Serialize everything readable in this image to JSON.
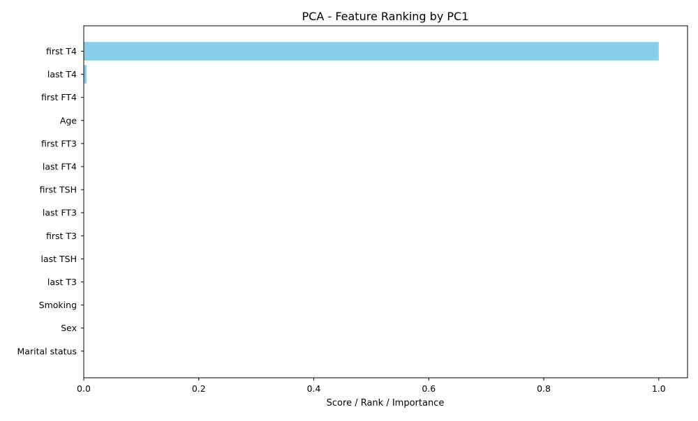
{
  "chart_data": {
    "type": "bar",
    "orientation": "horizontal",
    "title": "PCA - Feature Ranking by PC1",
    "xlabel": "Score / Rank / Importance",
    "ylabel": "",
    "categories": [
      "first T4",
      "last T4",
      "first FT4",
      "Age",
      "first FT3",
      "last FT4",
      "first TSH",
      "last FT3",
      "first T3",
      "last TSH",
      "last T3",
      "Smoking",
      "Sex",
      "Marital status"
    ],
    "values": [
      1.0,
      0.005,
      0.0005,
      0.0003,
      0.0002,
      0.0002,
      0.0001,
      0.0001,
      0.0001,
      0.0001,
      0.0001,
      0.0,
      0.0,
      0.0
    ],
    "xlim": [
      0,
      1.05
    ],
    "xticks": [
      0.0,
      0.2,
      0.4,
      0.6,
      0.8,
      1.0
    ],
    "xtick_labels": [
      "0.0",
      "0.2",
      "0.4",
      "0.6",
      "0.8",
      "1.0"
    ],
    "grid": false,
    "bar_color": "#87CEEB"
  }
}
